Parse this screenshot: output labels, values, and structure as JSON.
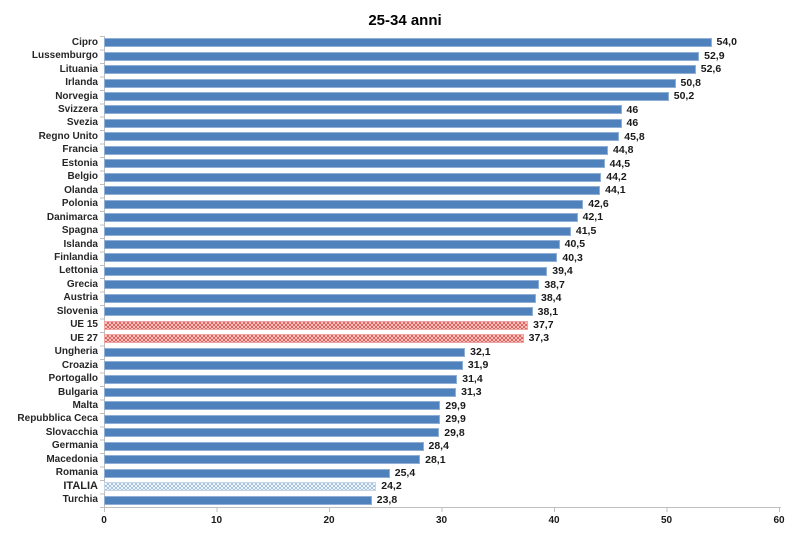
{
  "chart_data": {
    "type": "bar",
    "orientation": "horizontal",
    "title": "25-34 anni",
    "xlabel": "",
    "ylabel": "",
    "xlim": [
      0,
      60
    ],
    "x_ticks": [
      0,
      10,
      20,
      30,
      40,
      50,
      60
    ],
    "grid": "off",
    "legend": "none",
    "decimal_separator": ",",
    "colors": {
      "bar_default": "#4f81bd",
      "bar_eu_pattern_base": "#f9bfbc",
      "bar_eu_pattern_check": "#dd6660",
      "bar_italy_pattern_base": "#eef3f9",
      "bar_italy_pattern_check": "#a9c4de",
      "axis": "#bfbfbf",
      "text": "#1a1a1a"
    },
    "rows": [
      {
        "label": "Cipro",
        "value": 54.0,
        "display": "54,0",
        "style": "default"
      },
      {
        "label": "Lussemburgo",
        "value": 52.9,
        "display": "52,9",
        "style": "default"
      },
      {
        "label": "Lituania",
        "value": 52.6,
        "display": "52,6",
        "style": "default"
      },
      {
        "label": "Irlanda",
        "value": 50.8,
        "display": "50,8",
        "style": "default"
      },
      {
        "label": "Norvegia",
        "value": 50.2,
        "display": "50,2",
        "style": "default"
      },
      {
        "label": "Svizzera",
        "value": 46,
        "display": "46",
        "style": "default"
      },
      {
        "label": "Svezia",
        "value": 46,
        "display": "46",
        "style": "default"
      },
      {
        "label": "Regno Unito",
        "value": 45.8,
        "display": "45,8",
        "style": "default"
      },
      {
        "label": "Francia",
        "value": 44.8,
        "display": "44,8",
        "style": "default"
      },
      {
        "label": "Estonia",
        "value": 44.5,
        "display": "44,5",
        "style": "default"
      },
      {
        "label": "Belgio",
        "value": 44.2,
        "display": "44,2",
        "style": "default"
      },
      {
        "label": "Olanda",
        "value": 44.1,
        "display": "44,1",
        "style": "default"
      },
      {
        "label": "Polonia",
        "value": 42.6,
        "display": "42,6",
        "style": "default"
      },
      {
        "label": "Danimarca",
        "value": 42.1,
        "display": "42,1",
        "style": "default"
      },
      {
        "label": "Spagna",
        "value": 41.5,
        "display": "41,5",
        "style": "default"
      },
      {
        "label": "Islanda",
        "value": 40.5,
        "display": "40,5",
        "style": "default"
      },
      {
        "label": "Finlandia",
        "value": 40.3,
        "display": "40,3",
        "style": "default"
      },
      {
        "label": "Lettonia",
        "value": 39.4,
        "display": "39,4",
        "style": "default"
      },
      {
        "label": "Grecia",
        "value": 38.7,
        "display": "38,7",
        "style": "default"
      },
      {
        "label": "Austria",
        "value": 38.4,
        "display": "38,4",
        "style": "default"
      },
      {
        "label": "Slovenia",
        "value": 38.1,
        "display": "38,1",
        "style": "default"
      },
      {
        "label": "UE 15",
        "value": 37.7,
        "display": "37,7",
        "style": "eu"
      },
      {
        "label": "UE 27",
        "value": 37.3,
        "display": "37,3",
        "style": "eu"
      },
      {
        "label": "Ungheria",
        "value": 32.1,
        "display": "32,1",
        "style": "default"
      },
      {
        "label": "Croazia",
        "value": 31.9,
        "display": "31,9",
        "style": "default"
      },
      {
        "label": "Portogallo",
        "value": 31.4,
        "display": "31,4",
        "style": "default"
      },
      {
        "label": "Bulgaria",
        "value": 31.3,
        "display": "31,3",
        "style": "default"
      },
      {
        "label": "Malta",
        "value": 29.9,
        "display": "29,9",
        "style": "default"
      },
      {
        "label": "Repubblica Ceca",
        "value": 29.9,
        "display": "29,9",
        "style": "default"
      },
      {
        "label": "Slovacchia",
        "value": 29.8,
        "display": "29,8",
        "style": "default"
      },
      {
        "label": "Germania",
        "value": 28.4,
        "display": "28,4",
        "style": "default"
      },
      {
        "label": "Macedonia",
        "value": 28.1,
        "display": "28,1",
        "style": "default"
      },
      {
        "label": "Romania",
        "value": 25.4,
        "display": "25,4",
        "style": "default"
      },
      {
        "label": "ITALIA",
        "value": 24.2,
        "display": "24,2",
        "style": "italy"
      },
      {
        "label": "Turchia",
        "value": 23.8,
        "display": "23,8",
        "style": "default"
      }
    ]
  }
}
